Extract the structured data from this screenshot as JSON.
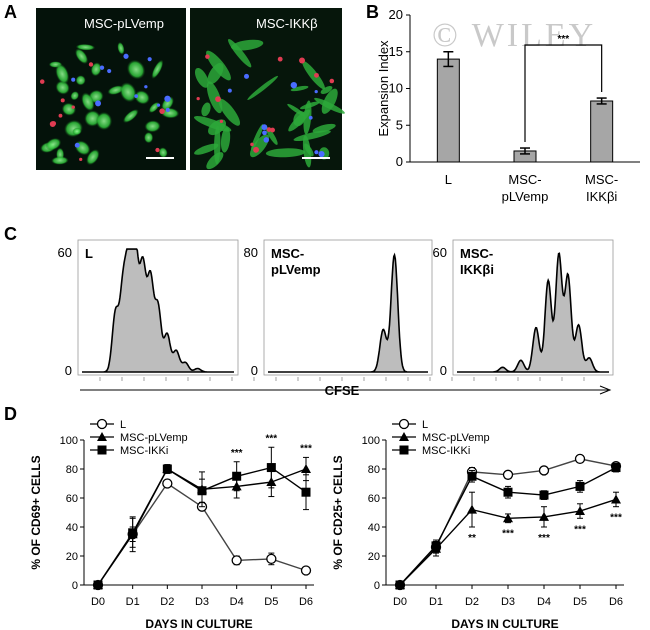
{
  "panels": {
    "a": "A",
    "b": "B",
    "c": "C",
    "d": "D"
  },
  "watermark": "© WILEY",
  "images": {
    "left_label": "MSC-pLVemp",
    "right_label": "MSC-IKKβ"
  },
  "chart_data": [
    {
      "id": "B",
      "type": "bar",
      "categories": [
        "L",
        "MSC-pLVemp",
        "MSC-IKKβi"
      ],
      "category_lines": [
        [
          "L"
        ],
        [
          "MSC-",
          "pLVemp"
        ],
        [
          "MSC-",
          "IKKβi"
        ]
      ],
      "values": [
        14.0,
        1.5,
        8.3
      ],
      "errors": [
        1.0,
        0.4,
        0.4
      ],
      "ylabel": "Expansion Index",
      "ylim": [
        0,
        20
      ],
      "yticks": [
        0,
        5,
        10,
        15,
        20
      ],
      "significance": {
        "between": [
          1,
          2
        ],
        "label": "***"
      },
      "bar_color": "#a6a6a6"
    },
    {
      "id": "C",
      "type": "area",
      "xlabel": "CFSE",
      "histograms": [
        {
          "label": [
            "L"
          ],
          "ymax_label": "60",
          "ymin_label": "0",
          "peaks": [
            [
              0.22,
              0.5
            ],
            [
              0.27,
              0.7
            ],
            [
              0.31,
              0.88
            ],
            [
              0.35,
              1.0
            ],
            [
              0.4,
              0.88
            ],
            [
              0.45,
              0.78
            ],
            [
              0.5,
              0.55
            ],
            [
              0.56,
              0.32
            ],
            [
              0.62,
              0.18
            ],
            [
              0.68,
              0.08
            ],
            [
              0.76,
              0.03
            ]
          ]
        },
        {
          "label": [
            "MSC-",
            "pLVemp"
          ],
          "ymax_label": "80",
          "ymin_label": "0",
          "peaks": [
            [
              0.72,
              0.36
            ],
            [
              0.79,
              1.0
            ]
          ]
        },
        {
          "label": [
            "MSC-",
            "IKKβi"
          ],
          "ymax_label": "60",
          "ymin_label": "0",
          "peaks": [
            [
              0.3,
              0.04
            ],
            [
              0.42,
              0.1
            ],
            [
              0.52,
              0.38
            ],
            [
              0.6,
              0.78
            ],
            [
              0.67,
              1.0
            ],
            [
              0.73,
              0.82
            ],
            [
              0.8,
              0.4
            ],
            [
              0.87,
              0.12
            ]
          ]
        }
      ]
    },
    {
      "id": "D-left",
      "type": "line",
      "x": [
        "D0",
        "D1",
        "D2",
        "D3",
        "D4",
        "D5",
        "D6"
      ],
      "xlabel": "DAYS IN CULTURE",
      "ylabel": "% OF CD69+ CELLS",
      "ylim": [
        0,
        100
      ],
      "yticks": [
        0,
        20,
        40,
        60,
        80,
        100
      ],
      "series": [
        {
          "name": "L",
          "marker": "circle",
          "values": [
            0,
            35,
            70,
            54,
            17,
            18,
            10
          ],
          "errors": [
            1,
            5,
            2,
            2,
            3,
            4,
            2
          ]
        },
        {
          "name": "MSC-pLVemp",
          "marker": "triangle",
          "values": [
            0,
            35,
            80,
            66,
            68,
            71,
            80
          ],
          "errors": [
            1,
            12,
            3,
            12,
            8,
            10,
            8
          ]
        },
        {
          "name": "MSC-IKKi",
          "marker": "square",
          "values": [
            0,
            36,
            80,
            65,
            75,
            81,
            64
          ],
          "errors": [
            1,
            10,
            3,
            8,
            10,
            14,
            12
          ]
        }
      ],
      "annotations": [
        {
          "x": "D4",
          "label": "***"
        },
        {
          "x": "D5",
          "label": "***"
        },
        {
          "x": "D6",
          "label": "***"
        }
      ],
      "legend": "top-left"
    },
    {
      "id": "D-right",
      "type": "line",
      "x": [
        "D0",
        "D1",
        "D2",
        "D3",
        "D4",
        "D5",
        "D6"
      ],
      "xlabel": "DAYS IN CULTURE",
      "ylabel": "% OF CD25+ CELLS",
      "ylim": [
        0,
        100
      ],
      "yticks": [
        0,
        20,
        40,
        60,
        80,
        100
      ],
      "series": [
        {
          "name": "L",
          "marker": "circle",
          "values": [
            0,
            26,
            78,
            76,
            79,
            87,
            82
          ],
          "errors": [
            1,
            4,
            3,
            2,
            2,
            2,
            2
          ]
        },
        {
          "name": "MSC-pLVemp",
          "marker": "triangle",
          "values": [
            0,
            25,
            52,
            46,
            47,
            51,
            59
          ],
          "errors": [
            1,
            5,
            12,
            3,
            7,
            5,
            5
          ]
        },
        {
          "name": "MSC-IKKi",
          "marker": "square",
          "values": [
            0,
            27,
            75,
            64,
            62,
            68,
            81
          ],
          "errors": [
            1,
            4,
            4,
            4,
            3,
            4,
            3
          ]
        }
      ],
      "annotations": [
        {
          "x": "D2",
          "label": "**"
        },
        {
          "x": "D3",
          "label": "***"
        },
        {
          "x": "D4",
          "label": "***"
        },
        {
          "x": "D5",
          "label": "***"
        },
        {
          "x": "D6",
          "label": "***"
        }
      ],
      "legend": "top-left"
    }
  ]
}
